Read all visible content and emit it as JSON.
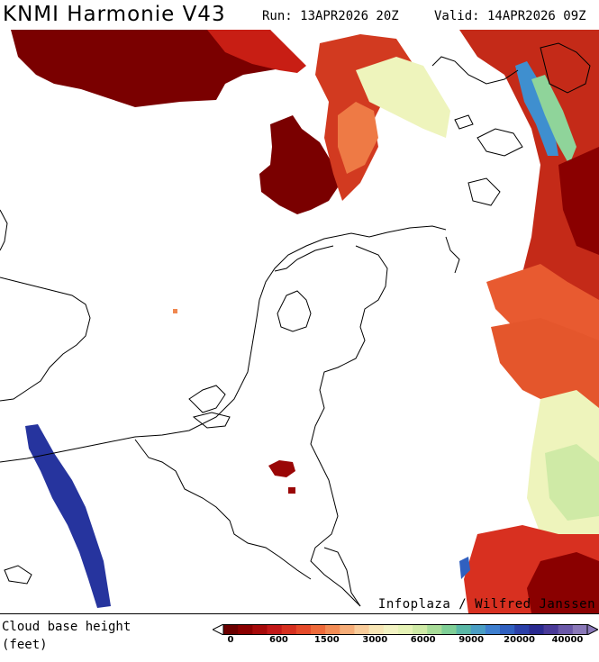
{
  "header": {
    "title": "KNMI Harmonie V43",
    "run": "Run: 13APR2026 20Z",
    "valid": "Valid: 14APR2026 09Z"
  },
  "map": {
    "credit": "Infoplaza / Wilfred Janssen"
  },
  "legend": {
    "title_line1": "Cloud base height",
    "title_line2": "(feet)",
    "colors": [
      "#6b0000",
      "#8a0000",
      "#a60a0a",
      "#c21818",
      "#d63020",
      "#e54a2a",
      "#ee6a3a",
      "#f28c55",
      "#f6ad78",
      "#f9cc9a",
      "#f8e6b5",
      "#f3f3c3",
      "#e6f3b6",
      "#cfeaa6",
      "#a8dc98",
      "#7fcf96",
      "#5ab8a6",
      "#4a9ec4",
      "#3e7fcf",
      "#3060c0",
      "#2a3fa8",
      "#2a2a90",
      "#4a3a98",
      "#6a58a8",
      "#8a78b8"
    ],
    "tick_labels": [
      "0",
      "600",
      "1500",
      "3000",
      "6000",
      "9000",
      "20000",
      "40000"
    ]
  }
}
